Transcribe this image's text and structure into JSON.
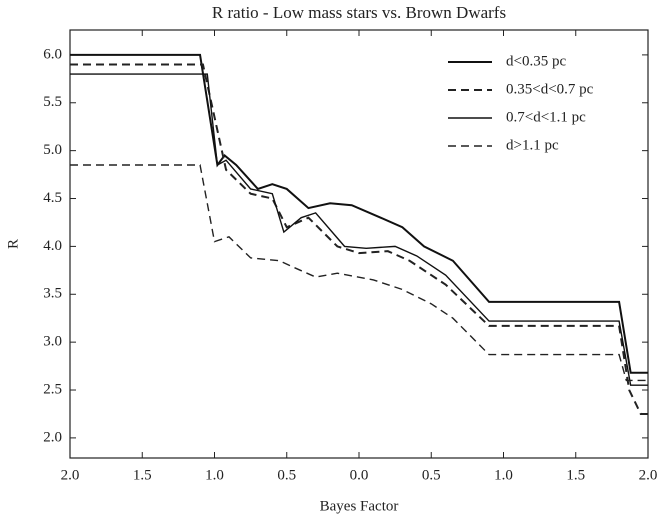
{
  "chart_data": {
    "type": "line",
    "title": "R ratio - Low mass stars vs. Brown Dwarfs",
    "xlabel": "Bayes Factor",
    "ylabel": "R",
    "xlim": [
      -2,
      2
    ],
    "ylim": [
      1.79,
      6.26
    ],
    "xticks": [
      {
        "value": -2,
        "label": "2.0"
      },
      {
        "value": -1.5,
        "label": "1.5"
      },
      {
        "value": -1,
        "label": "1.0"
      },
      {
        "value": -0.5,
        "label": "0.5"
      },
      {
        "value": 0,
        "label": "0.0"
      },
      {
        "value": 0.5,
        "label": "0.5"
      },
      {
        "value": 1,
        "label": "1.0"
      },
      {
        "value": 1.5,
        "label": "1.5"
      },
      {
        "value": 2,
        "label": "2.0"
      }
    ],
    "yticks": [
      {
        "value": 2,
        "label": "2.0"
      },
      {
        "value": 2.5,
        "label": "2.5"
      },
      {
        "value": 3,
        "label": "3.0"
      },
      {
        "value": 3.5,
        "label": "3.5"
      },
      {
        "value": 4,
        "label": "4.0"
      },
      {
        "value": 4.5,
        "label": "4.5"
      },
      {
        "value": 5,
        "label": "5.0"
      },
      {
        "value": 5.5,
        "label": "5.5"
      },
      {
        "value": 6,
        "label": "6.0"
      }
    ],
    "legend": "upper right",
    "series": [
      {
        "name": "d<0.35 pc",
        "color": "#111111",
        "dash": false,
        "width": 2,
        "x": [
          -2,
          -1.1,
          -0.98,
          -0.93,
          -0.85,
          -0.7,
          -0.6,
          -0.5,
          -0.35,
          -0.2,
          -0.05,
          0.15,
          0.3,
          0.45,
          0.65,
          0.9,
          1.8,
          1.88,
          2
        ],
        "values": [
          6.0,
          6.0,
          4.85,
          4.95,
          4.85,
          4.6,
          4.65,
          4.6,
          4.4,
          4.45,
          4.43,
          4.3,
          4.2,
          4.0,
          3.85,
          3.42,
          3.42,
          2.68,
          2.68
        ]
      },
      {
        "name": "0.35<d<0.7 pc",
        "color": "#222222",
        "dash": true,
        "width": 2,
        "x": [
          -2,
          -1.08,
          -0.92,
          -0.75,
          -0.6,
          -0.5,
          -0.35,
          -0.15,
          0,
          0.2,
          0.35,
          0.6,
          0.9,
          1.8,
          1.87,
          1.95,
          2
        ],
        "values": [
          5.9,
          5.9,
          4.8,
          4.55,
          4.5,
          4.2,
          4.3,
          4.0,
          3.93,
          3.95,
          3.85,
          3.6,
          3.17,
          3.17,
          2.5,
          2.25,
          2.25
        ]
      },
      {
        "name": "0.7<d<1.1 pc",
        "color": "#111111",
        "dash": false,
        "width": 1.4,
        "x": [
          -2,
          -1.05,
          -0.98,
          -0.92,
          -0.75,
          -0.6,
          -0.52,
          -0.4,
          -0.3,
          -0.1,
          0.05,
          0.25,
          0.4,
          0.6,
          0.9,
          1.8,
          1.88,
          2
        ],
        "values": [
          5.8,
          5.8,
          4.85,
          4.9,
          4.6,
          4.55,
          4.15,
          4.3,
          4.35,
          4.0,
          3.98,
          4.0,
          3.9,
          3.7,
          3.22,
          3.22,
          2.55,
          2.55
        ]
      },
      {
        "name": "d>1.1 pc",
        "color": "#222222",
        "dash": true,
        "width": 1.4,
        "x": [
          -2,
          -1.1,
          -1.0,
          -0.9,
          -0.75,
          -0.55,
          -0.45,
          -0.3,
          -0.15,
          0.1,
          0.3,
          0.5,
          0.65,
          0.9,
          1.8,
          1.85,
          2
        ],
        "values": [
          4.85,
          4.85,
          4.05,
          4.1,
          3.88,
          3.85,
          3.78,
          3.68,
          3.72,
          3.65,
          3.55,
          3.4,
          3.25,
          2.87,
          2.87,
          2.6,
          2.6
        ]
      }
    ]
  }
}
